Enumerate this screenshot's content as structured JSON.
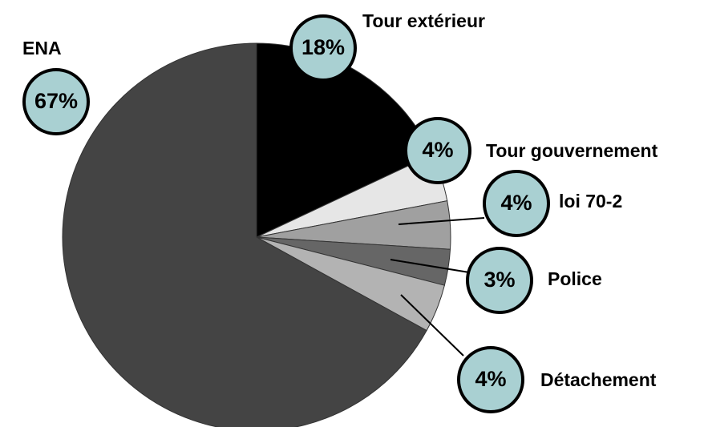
{
  "chart_data": {
    "type": "pie",
    "categories": [
      "Tour extérieur",
      "Tour gouvernement",
      "loi 70-2",
      "Police",
      "Détachement",
      "ENA"
    ],
    "values": [
      18,
      4,
      4,
      3,
      4,
      67
    ],
    "value_labels": [
      "18%",
      "4%",
      "4%",
      "3%",
      "4%",
      "67%"
    ],
    "colors": [
      "#000000",
      "#e6e6e6",
      "#a0a0a0",
      "#666666",
      "#b3b3b3",
      "#444444"
    ]
  }
}
